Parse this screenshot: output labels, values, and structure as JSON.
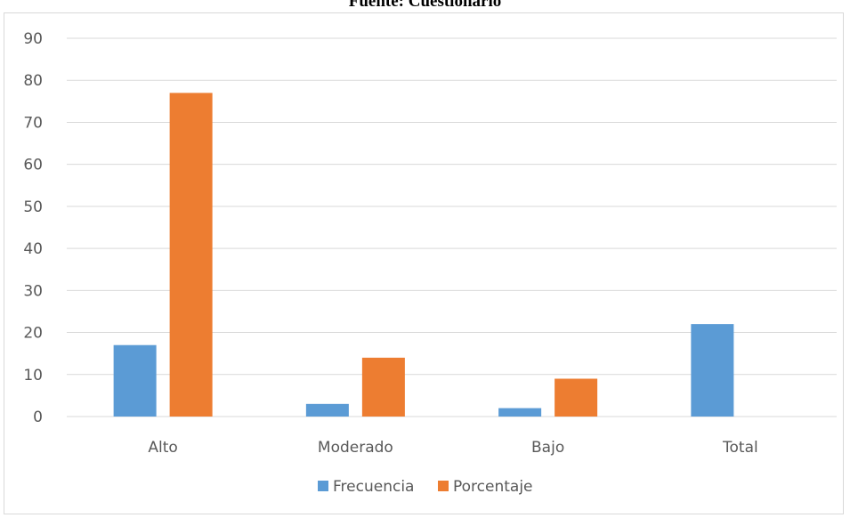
{
  "source": "Fuente: Cuestionario",
  "chart_data": {
    "type": "bar",
    "categories": [
      "Alto",
      "Moderado",
      "Bajo",
      "Total"
    ],
    "series": [
      {
        "name": "Frecuencia",
        "values": [
          17,
          3,
          2,
          22
        ],
        "color": "#5b9bd5"
      },
      {
        "name": "Porcentaje",
        "values": [
          77,
          14,
          9,
          0
        ],
        "color": "#ed7d31"
      }
    ],
    "ylim": [
      0,
      90
    ],
    "yticks": [
      0,
      10,
      20,
      30,
      40,
      50,
      60,
      70,
      80,
      90
    ],
    "grid": true,
    "legend": "bottom"
  }
}
